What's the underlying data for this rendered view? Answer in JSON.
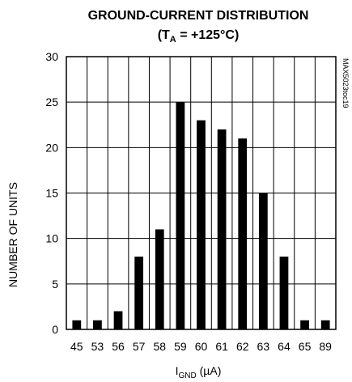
{
  "chart_data": {
    "type": "bar",
    "title": "GROUND-CURRENT DISTRIBUTION",
    "subtitle_prefix": "(T",
    "subtitle_sub": "A",
    "subtitle_suffix": " = +125°C)",
    "xlabel_main": "I",
    "xlabel_sub": "GND",
    "xlabel_suffix": " (µA)",
    "ylabel": "NUMBER OF UNITS",
    "categories": [
      "45",
      "53",
      "56",
      "57",
      "58",
      "59",
      "60",
      "61",
      "62",
      "63",
      "64",
      "65",
      "89"
    ],
    "values": [
      1,
      1,
      2,
      8,
      11,
      25,
      23,
      22,
      21,
      15,
      8,
      1,
      1
    ],
    "ylim": [
      0,
      30
    ],
    "yticks": [
      0,
      5,
      10,
      15,
      20,
      25,
      30
    ],
    "grid": true,
    "side_note": "MAX5023toc19",
    "bar_color": "#000000",
    "grid_color": "#000000"
  }
}
